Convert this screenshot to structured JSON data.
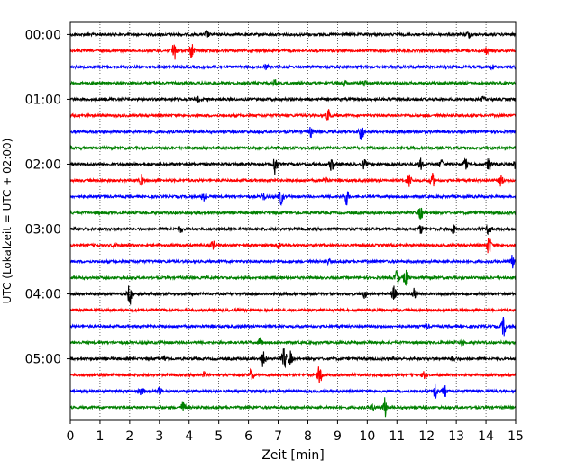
{
  "chart_data": {
    "type": "line",
    "title": "",
    "xlabel": "Zeit  [min]",
    "ylabel": "UTC (Lokalzeit = UTC + 02:00)",
    "xlim": [
      0,
      15
    ],
    "x_ticks": [
      "0",
      "1",
      "2",
      "3",
      "4",
      "5",
      "6",
      "7",
      "8",
      "9",
      "10",
      "11",
      "12",
      "13",
      "14",
      "15"
    ],
    "y_ticks": [
      "00:00",
      "01:00",
      "02:00",
      "03:00",
      "04:00",
      "05:00"
    ],
    "trace_interval_min": 15,
    "color_cycle": [
      "#000000",
      "#ff0000",
      "#0000ff",
      "#008000"
    ],
    "vertical_grid": true,
    "traces": [
      {
        "start": "00:00",
        "color": "#000000",
        "events": [
          [
            4.6,
            0.3
          ],
          [
            13.4,
            0.3
          ]
        ]
      },
      {
        "start": "00:15",
        "color": "#ff0000",
        "events": [
          [
            3.5,
            1.0
          ],
          [
            4.1,
            0.8
          ],
          [
            14.0,
            0.3
          ]
        ]
      },
      {
        "start": "00:30",
        "color": "#0000ff",
        "events": [
          [
            6.6,
            0.2
          ],
          [
            14.2,
            0.2
          ]
        ]
      },
      {
        "start": "00:45",
        "color": "#008000",
        "events": [
          [
            6.9,
            0.3
          ],
          [
            9.2,
            0.3
          ],
          [
            9.9,
            0.3
          ]
        ]
      },
      {
        "start": "01:00",
        "color": "#000000",
        "events": [
          [
            4.3,
            0.2
          ],
          [
            13.9,
            0.2
          ]
        ]
      },
      {
        "start": "01:15",
        "color": "#ff0000",
        "events": [
          [
            8.7,
            0.5
          ]
        ]
      },
      {
        "start": "01:30",
        "color": "#0000ff",
        "events": [
          [
            8.1,
            0.5
          ],
          [
            9.8,
            0.9
          ]
        ]
      },
      {
        "start": "01:45",
        "color": "#008000",
        "events": []
      },
      {
        "start": "02:00",
        "color": "#000000",
        "events": [
          [
            6.9,
            1.0
          ],
          [
            8.8,
            0.6
          ],
          [
            9.9,
            0.4
          ],
          [
            11.8,
            0.5
          ],
          [
            12.5,
            0.5
          ],
          [
            13.3,
            0.5
          ],
          [
            14.1,
            0.6
          ],
          [
            15.0,
            0.4
          ]
        ]
      },
      {
        "start": "02:15",
        "color": "#ff0000",
        "events": [
          [
            2.4,
            0.5
          ],
          [
            8.6,
            0.4
          ],
          [
            11.4,
            0.8
          ],
          [
            12.2,
            0.6
          ],
          [
            14.5,
            0.5
          ]
        ]
      },
      {
        "start": "02:30",
        "color": "#0000ff",
        "events": [
          [
            4.5,
            0.6
          ],
          [
            7.1,
            0.8
          ],
          [
            9.3,
            0.8
          ],
          [
            6.5,
            0.3
          ]
        ]
      },
      {
        "start": "02:45",
        "color": "#008000",
        "events": [
          [
            11.8,
            0.6
          ]
        ]
      },
      {
        "start": "03:00",
        "color": "#000000",
        "events": [
          [
            3.7,
            0.3
          ],
          [
            11.8,
            0.4
          ],
          [
            12.9,
            0.4
          ],
          [
            14.1,
            0.6
          ]
        ]
      },
      {
        "start": "03:15",
        "color": "#ff0000",
        "events": [
          [
            1.5,
            0.3
          ],
          [
            4.8,
            0.4
          ],
          [
            7.0,
            0.3
          ],
          [
            14.1,
            0.9
          ]
        ]
      },
      {
        "start": "03:30",
        "color": "#0000ff",
        "events": [
          [
            8.7,
            0.2
          ],
          [
            14.9,
            0.6
          ]
        ]
      },
      {
        "start": "03:45",
        "color": "#008000",
        "events": [
          [
            11.0,
            0.8
          ],
          [
            11.3,
            1.0
          ]
        ]
      },
      {
        "start": "04:00",
        "color": "#000000",
        "events": [
          [
            2.0,
            1.0
          ],
          [
            9.9,
            0.4
          ],
          [
            10.9,
            0.7
          ],
          [
            11.6,
            0.5
          ]
        ]
      },
      {
        "start": "04:15",
        "color": "#ff0000",
        "events": []
      },
      {
        "start": "04:30",
        "color": "#0000ff",
        "events": [
          [
            14.6,
            0.9
          ],
          [
            12.0,
            0.2
          ]
        ]
      },
      {
        "start": "04:45",
        "color": "#008000",
        "events": [
          [
            6.4,
            0.3
          ],
          [
            13.2,
            0.2
          ]
        ]
      },
      {
        "start": "05:00",
        "color": "#000000",
        "events": [
          [
            6.5,
            0.8
          ],
          [
            7.2,
            1.0
          ],
          [
            7.4,
            0.7
          ],
          [
            3.2,
            0.3
          ],
          [
            12.9,
            0.2
          ]
        ]
      },
      {
        "start": "05:15",
        "color": "#ff0000",
        "events": [
          [
            4.5,
            0.3
          ],
          [
            6.1,
            0.6
          ],
          [
            8.4,
            0.9
          ],
          [
            11.9,
            0.3
          ]
        ]
      },
      {
        "start": "05:30",
        "color": "#0000ff",
        "events": [
          [
            2.4,
            0.4
          ],
          [
            3.0,
            0.4
          ],
          [
            12.3,
            0.8
          ],
          [
            12.6,
            0.6
          ]
        ]
      },
      {
        "start": "05:45",
        "color": "#008000",
        "events": [
          [
            3.8,
            0.5
          ],
          [
            10.6,
            0.9
          ],
          [
            10.2,
            0.3
          ]
        ]
      }
    ]
  }
}
